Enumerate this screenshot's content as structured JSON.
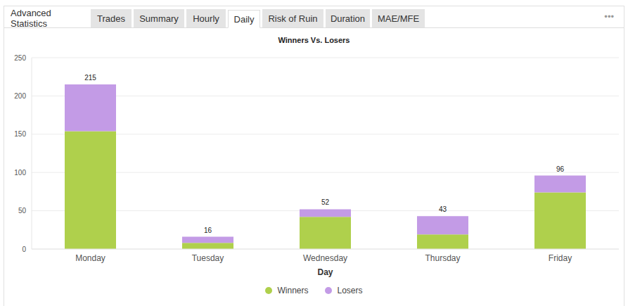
{
  "header": {
    "tabs": [
      "Advanced Statistics",
      "Trades",
      "Summary",
      "Hourly",
      "Daily",
      "Risk of Ruin",
      "Duration",
      "MAE/MFE"
    ],
    "active_tab": "Daily",
    "menu": "•••"
  },
  "chart_data": {
    "type": "bar",
    "title": "Winners Vs. Losers",
    "x_label": "Day",
    "categories": [
      "Monday",
      "Tuesday",
      "Wednesday",
      "Thursday",
      "Friday"
    ],
    "series": [
      {
        "name": "Winners",
        "color": "#afd04c",
        "values": [
          154,
          8,
          42,
          19,
          74
        ]
      },
      {
        "name": "Losers",
        "color": "#c39be6",
        "values": [
          61,
          8,
          10,
          24,
          22
        ]
      }
    ],
    "totals": [
      215,
      16,
      52,
      43,
      96
    ],
    "ylim": [
      0,
      250
    ],
    "yticks": [
      0,
      50,
      100,
      150,
      200,
      250
    ],
    "stacked": true,
    "grid": true,
    "legend": "bottom"
  }
}
